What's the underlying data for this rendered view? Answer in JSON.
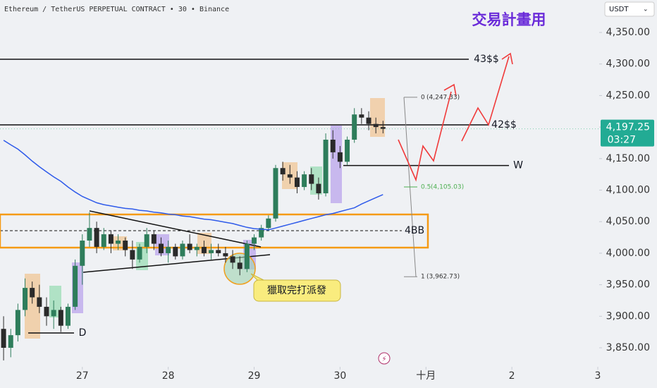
{
  "chart_data": {
    "type": "candlestick",
    "header": "Ethereum / TetherUS PERPETUAL CONTRACT • 30 • Binance",
    "currency": "USDT",
    "title": "交易計畫用",
    "callout": "獵取完打派發",
    "up_color": "#2e7d5b",
    "down_color": "#2a2a2a",
    "ma_color": "#2f5bea",
    "x": [
      1,
      3,
      5,
      7,
      9,
      11,
      13,
      15,
      17,
      19,
      21,
      23,
      25,
      27,
      29,
      31,
      33,
      35,
      37,
      39,
      41,
      43,
      45,
      47,
      49,
      51,
      53,
      55,
      57,
      59,
      61,
      63,
      65,
      67,
      69,
      71,
      73,
      75,
      77,
      79,
      81,
      83,
      85,
      87,
      89,
      91,
      93,
      95,
      97,
      99,
      101,
      103,
      105,
      107
    ],
    "open": [
      3880,
      3850,
      3870,
      3910,
      3945,
      3930,
      3915,
      3900,
      3910,
      3885,
      3915,
      3980,
      4020,
      4040,
      4010,
      4030,
      4015,
      4020,
      4005,
      3990,
      4010,
      4030,
      4015,
      4000,
      4010,
      3995,
      4015,
      4005,
      4010,
      4000,
      4005,
      4000,
      3995,
      3985,
      3975,
      4015,
      4025,
      4040,
      4055,
      4135,
      4125,
      4120,
      4105,
      4125,
      4110,
      4095,
      4180,
      4160,
      4145,
      4180,
      4220,
      4215,
      4205,
      4200
    ],
    "high": [
      3900,
      3880,
      3920,
      3960,
      3955,
      3950,
      3930,
      3925,
      3915,
      3920,
      3990,
      4030,
      4065,
      4050,
      4040,
      4035,
      4030,
      4025,
      4020,
      4015,
      4040,
      4035,
      4025,
      4020,
      4015,
      4020,
      4030,
      4015,
      4020,
      4015,
      4015,
      4010,
      4005,
      3995,
      4020,
      4030,
      4045,
      4060,
      4140,
      4145,
      4140,
      4130,
      4130,
      4135,
      4120,
      4190,
      4195,
      4170,
      4185,
      4230,
      4230,
      4225,
      4215,
      4210
    ],
    "low": [
      3830,
      3835,
      3860,
      3900,
      3920,
      3905,
      3885,
      3880,
      3875,
      3880,
      3910,
      3950,
      4010,
      4000,
      4005,
      4000,
      4005,
      3995,
      3975,
      3985,
      4000,
      4005,
      3995,
      3985,
      3990,
      3990,
      4000,
      3995,
      3995,
      3990,
      3995,
      3985,
      3975,
      3965,
      3970,
      4005,
      4020,
      4035,
      4050,
      4115,
      4110,
      4095,
      4100,
      4100,
      4085,
      4090,
      4150,
      4135,
      4140,
      4175,
      4205,
      4195,
      4190,
      4190
    ],
    "close": [
      3850,
      3870,
      3910,
      3945,
      3930,
      3915,
      3900,
      3910,
      3885,
      3915,
      3980,
      4020,
      4040,
      4010,
      4030,
      4015,
      4020,
      4005,
      3990,
      4010,
      4030,
      4015,
      4000,
      4010,
      3995,
      4015,
      4005,
      4010,
      4000,
      4005,
      4000,
      3995,
      3985,
      3975,
      4015,
      4025,
      4040,
      4055,
      4135,
      4125,
      4120,
      4105,
      4125,
      4110,
      4095,
      4180,
      4160,
      4145,
      4180,
      4220,
      4215,
      4205,
      4200,
      4197.25
    ],
    "ma": [
      4179,
      4172,
      4165,
      4156,
      4146,
      4137,
      4129,
      4121,
      4114,
      4105,
      4097,
      4090,
      4085,
      4080,
      4077,
      4075,
      4073,
      4071,
      4070,
      4068,
      4067,
      4065,
      4064,
      4062,
      4061,
      4059,
      4058,
      4056,
      4054,
      4053,
      4051,
      4049,
      4047,
      4044,
      4041,
      4039,
      4038,
      4037,
      4040,
      4043,
      4046,
      4049,
      4052,
      4055,
      4058,
      4061,
      4063,
      4066,
      4069,
      4072,
      4078,
      4083,
      4088,
      4093
    ],
    "xlim": [
      0,
      167
    ],
    "xticks": [
      {
        "value": 23,
        "label": "27"
      },
      {
        "value": 47,
        "label": "28"
      },
      {
        "value": 71,
        "label": "29"
      },
      {
        "value": 95,
        "label": "30"
      },
      {
        "value": 119,
        "label": "十月"
      },
      {
        "value": 143,
        "label": "2"
      },
      {
        "value": 167,
        "label": "3"
      }
    ],
    "ylim": [
      3819.8,
      4401.5
    ],
    "yticks": [
      {
        "value": 3850,
        "label": "3,850.00"
      },
      {
        "value": 3900,
        "label": "3,900.00"
      },
      {
        "value": 3950,
        "label": "3,950.00"
      },
      {
        "value": 4000,
        "label": "4,000.00"
      },
      {
        "value": 4050,
        "label": "4,050.00"
      },
      {
        "value": 4100,
        "label": "4,100.00"
      },
      {
        "value": 4150,
        "label": "4,150.00"
      },
      {
        "value": 4200,
        "label": "4,200.00"
      },
      {
        "value": 4250,
        "label": "4,250.00"
      },
      {
        "value": 4300,
        "label": "4,300.00"
      },
      {
        "value": 4350,
        "label": "4,350.00"
      }
    ],
    "last_price": {
      "value": 4197.25,
      "label": "4,197.25"
    },
    "countdown": "03:27",
    "levels": [
      {
        "label": "43$$",
        "price": 4307.5
      },
      {
        "label": "42$$",
        "price": 4203.5
      },
      {
        "label": "W",
        "price": 4139
      },
      {
        "label": "D",
        "price": 3873.5
      },
      {
        "label": "4BB",
        "price": 4035.7
      }
    ],
    "fib": [
      {
        "level": "0",
        "label": "(4,247.33)",
        "price": 4247.33
      },
      {
        "level": "0.5",
        "label": "(4,105.03)",
        "price": 4105.03
      },
      {
        "level": "1",
        "label": "(3,962.73)",
        "price": 3962.73
      }
    ]
  }
}
